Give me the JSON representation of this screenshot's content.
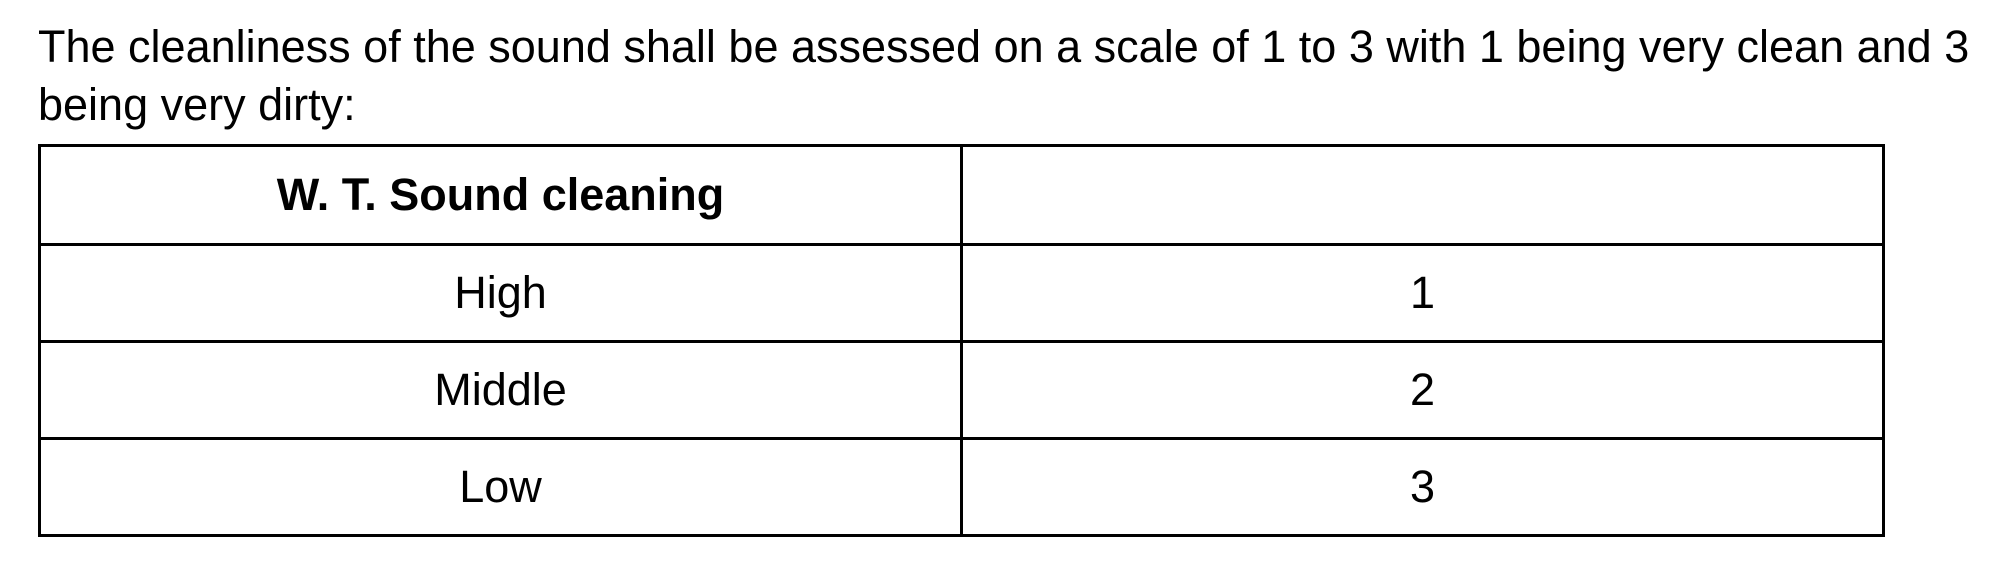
{
  "page": {
    "intro": {
      "lines": [
        "The cleanliness of the sound shall be assessed on a scale of 1 to 3 with 1 being very clean and 3",
        "being very dirty:"
      ]
    },
    "table": {
      "header": {
        "title": "W. T. Sound cleaning",
        "empty": ""
      },
      "rows": [
        {
          "label": "High",
          "value": "1"
        },
        {
          "label": "Middle",
          "value": "2"
        },
        {
          "label": "Low",
          "value": "3"
        }
      ]
    },
    "colors": {
      "text": "#000000",
      "border": "#000000",
      "background": "#ffffff"
    }
  }
}
